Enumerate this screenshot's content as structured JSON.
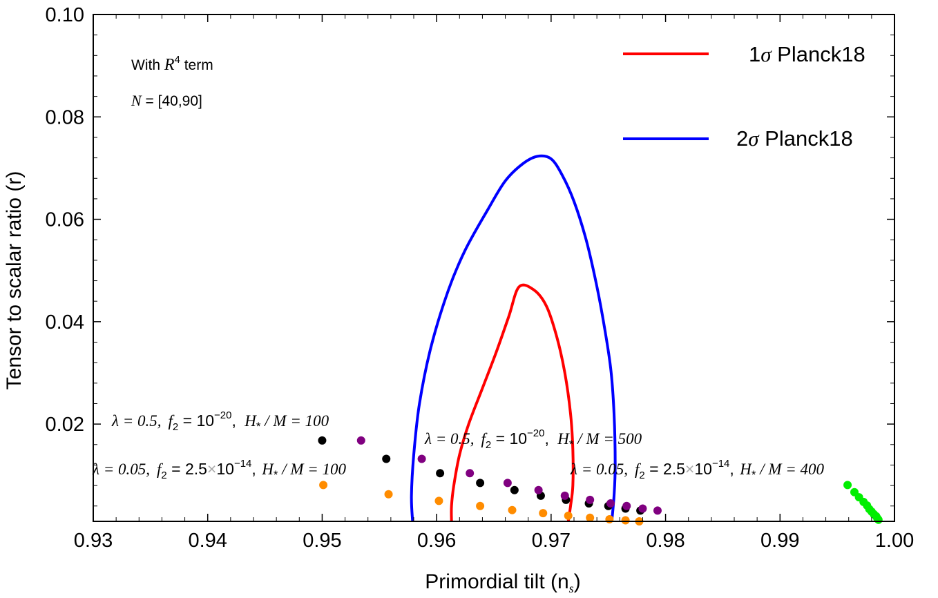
{
  "chart_data": {
    "type": "scatter",
    "title": "",
    "xlabel": "Primordial tilt (n",
    "xlabel_sub": "s",
    "xlabel_close": ")",
    "ylabel": "Tensor to scalar ratio (r)",
    "xlim": [
      0.93,
      1.0
    ],
    "ylim": [
      0.001,
      0.1
    ],
    "x_ticks": [
      "0.93",
      "0.94",
      "0.95",
      "0.96",
      "0.97",
      "0.98",
      "0.99",
      "1.00"
    ],
    "y_ticks": [
      "0.02",
      "0.04",
      "0.06",
      "0.08",
      "0.10"
    ],
    "notes": {
      "line1_prefix": "With ",
      "line1_var": "R",
      "line1_exp": "4",
      "line1_suffix": " term",
      "line2_var": "N",
      "line2_rest": " = [40,90]"
    },
    "legend": [
      {
        "name_prefix": "1",
        "name_sym": "σ",
        "name_suffix": " Planck18",
        "color": "#ff0000"
      },
      {
        "name_prefix": "2",
        "name_sym": "σ",
        "name_suffix": " Planck18",
        "color": "#0000ff"
      }
    ],
    "contours": [
      {
        "name": "1σ Planck18",
        "color": "#ff0000",
        "points": [
          [
            0.9613,
            0.001
          ],
          [
            0.9613,
            0.004
          ],
          [
            0.9615,
            0.008
          ],
          [
            0.962,
            0.014
          ],
          [
            0.9628,
            0.02
          ],
          [
            0.964,
            0.027
          ],
          [
            0.9652,
            0.034
          ],
          [
            0.9663,
            0.041
          ],
          [
            0.9672,
            0.0468
          ],
          [
            0.9685,
            0.0462
          ],
          [
            0.9696,
            0.043
          ],
          [
            0.9705,
            0.037
          ],
          [
            0.9712,
            0.03
          ],
          [
            0.9717,
            0.022
          ],
          [
            0.9719,
            0.015
          ],
          [
            0.9719,
            0.008
          ],
          [
            0.9717,
            0.004
          ],
          [
            0.9715,
            0.001
          ]
        ]
      },
      {
        "name": "2σ Planck18",
        "color": "#0000ff",
        "points": [
          [
            0.9579,
            0.001
          ],
          [
            0.9578,
            0.006
          ],
          [
            0.958,
            0.014
          ],
          [
            0.9585,
            0.024
          ],
          [
            0.9595,
            0.035
          ],
          [
            0.961,
            0.046
          ],
          [
            0.9625,
            0.054
          ],
          [
            0.9645,
            0.062
          ],
          [
            0.966,
            0.0675
          ],
          [
            0.9675,
            0.0708
          ],
          [
            0.9688,
            0.0723
          ],
          [
            0.97,
            0.0718
          ],
          [
            0.971,
            0.0685
          ],
          [
            0.972,
            0.0635
          ],
          [
            0.973,
            0.0565
          ],
          [
            0.9738,
            0.049
          ],
          [
            0.9745,
            0.041
          ],
          [
            0.9752,
            0.031
          ],
          [
            0.9755,
            0.022
          ],
          [
            0.9756,
            0.012
          ],
          [
            0.9755,
            0.006
          ],
          [
            0.9753,
            0.001
          ]
        ]
      }
    ],
    "series": [
      {
        "name": "λ=0.5, f2=10^-20, H*/M=100",
        "color": "#000000",
        "points": [
          [
            0.95,
            0.0168
          ],
          [
            0.9556,
            0.0132
          ],
          [
            0.9603,
            0.0104
          ],
          [
            0.9638,
            0.0085
          ],
          [
            0.9668,
            0.0071
          ],
          [
            0.9691,
            0.006
          ],
          [
            0.9713,
            0.0052
          ],
          [
            0.9733,
            0.0045
          ],
          [
            0.975,
            0.004
          ],
          [
            0.9765,
            0.0035
          ],
          [
            0.9778,
            0.0031
          ]
        ]
      },
      {
        "name": "λ=0.5, f2=10^-20, H*/M=500",
        "color": "#800080",
        "points": [
          [
            0.9534,
            0.0168
          ],
          [
            0.9587,
            0.0132
          ],
          [
            0.9629,
            0.0104
          ],
          [
            0.9662,
            0.0085
          ],
          [
            0.9689,
            0.0071
          ],
          [
            0.9712,
            0.006
          ],
          [
            0.9734,
            0.0052
          ],
          [
            0.9752,
            0.0045
          ],
          [
            0.9766,
            0.004
          ],
          [
            0.978,
            0.0035
          ],
          [
            0.9793,
            0.0031
          ]
        ]
      },
      {
        "name": "λ=0.05, f2=2.5×10^-14, H*/M=100",
        "color": "#ff8c00",
        "points": [
          [
            0.9501,
            0.0081
          ],
          [
            0.9558,
            0.0063
          ],
          [
            0.9602,
            0.005
          ],
          [
            0.9638,
            0.004
          ],
          [
            0.9666,
            0.0032
          ],
          [
            0.9693,
            0.0026
          ],
          [
            0.9715,
            0.0021
          ],
          [
            0.9734,
            0.0017
          ],
          [
            0.9751,
            0.0014
          ],
          [
            0.9765,
            0.0012
          ],
          [
            0.9777,
            0.001
          ]
        ]
      },
      {
        "name": "λ=0.05, f2=2.5×10^-14, H*/M=400",
        "color": "#00ee00",
        "points": [
          [
            0.9959,
            0.0081
          ],
          [
            0.9965,
            0.0067
          ],
          [
            0.9969,
            0.0057
          ],
          [
            0.9973,
            0.0048
          ],
          [
            0.9976,
            0.0041
          ],
          [
            0.9978,
            0.0034
          ],
          [
            0.998,
            0.0029
          ],
          [
            0.9982,
            0.0024
          ],
          [
            0.9984,
            0.002
          ],
          [
            0.9985,
            0.0016
          ],
          [
            0.9986,
            0.0013
          ]
        ]
      }
    ],
    "annotations": [
      {
        "lambda": "λ = 0.5,",
        "f2_prefix": "f",
        "f2_sub": "2",
        "f2_eq": " = ",
        "f2_mant": "",
        "f2_times": "",
        "f2_base": "10",
        "f2_exp": "−20",
        "h": "H",
        "h_sub": "*",
        "h_rest": " / M = 100"
      },
      {
        "lambda": "λ = 0.5,",
        "f2_prefix": "f",
        "f2_sub": "2",
        "f2_eq": " = ",
        "f2_mant": "",
        "f2_times": "",
        "f2_base": "10",
        "f2_exp": "−20",
        "h": "H",
        "h_sub": "*",
        "h_rest": " / M = 500"
      },
      {
        "lambda": "λ = 0.05,",
        "f2_prefix": "f",
        "f2_sub": "2",
        "f2_eq": " = ",
        "f2_mant": "2.5",
        "f2_times": "×",
        "f2_base": "10",
        "f2_exp": "−14",
        "h": "H",
        "h_sub": "*",
        "h_rest": " / M = 100"
      },
      {
        "lambda": "λ = 0.05,",
        "f2_prefix": "f",
        "f2_sub": "2",
        "f2_eq": " = ",
        "f2_mant": "2.5",
        "f2_times": "×",
        "f2_base": "10",
        "f2_exp": "−14",
        "h": "H",
        "h_sub": "*",
        "h_rest": " / M = 400"
      }
    ]
  }
}
